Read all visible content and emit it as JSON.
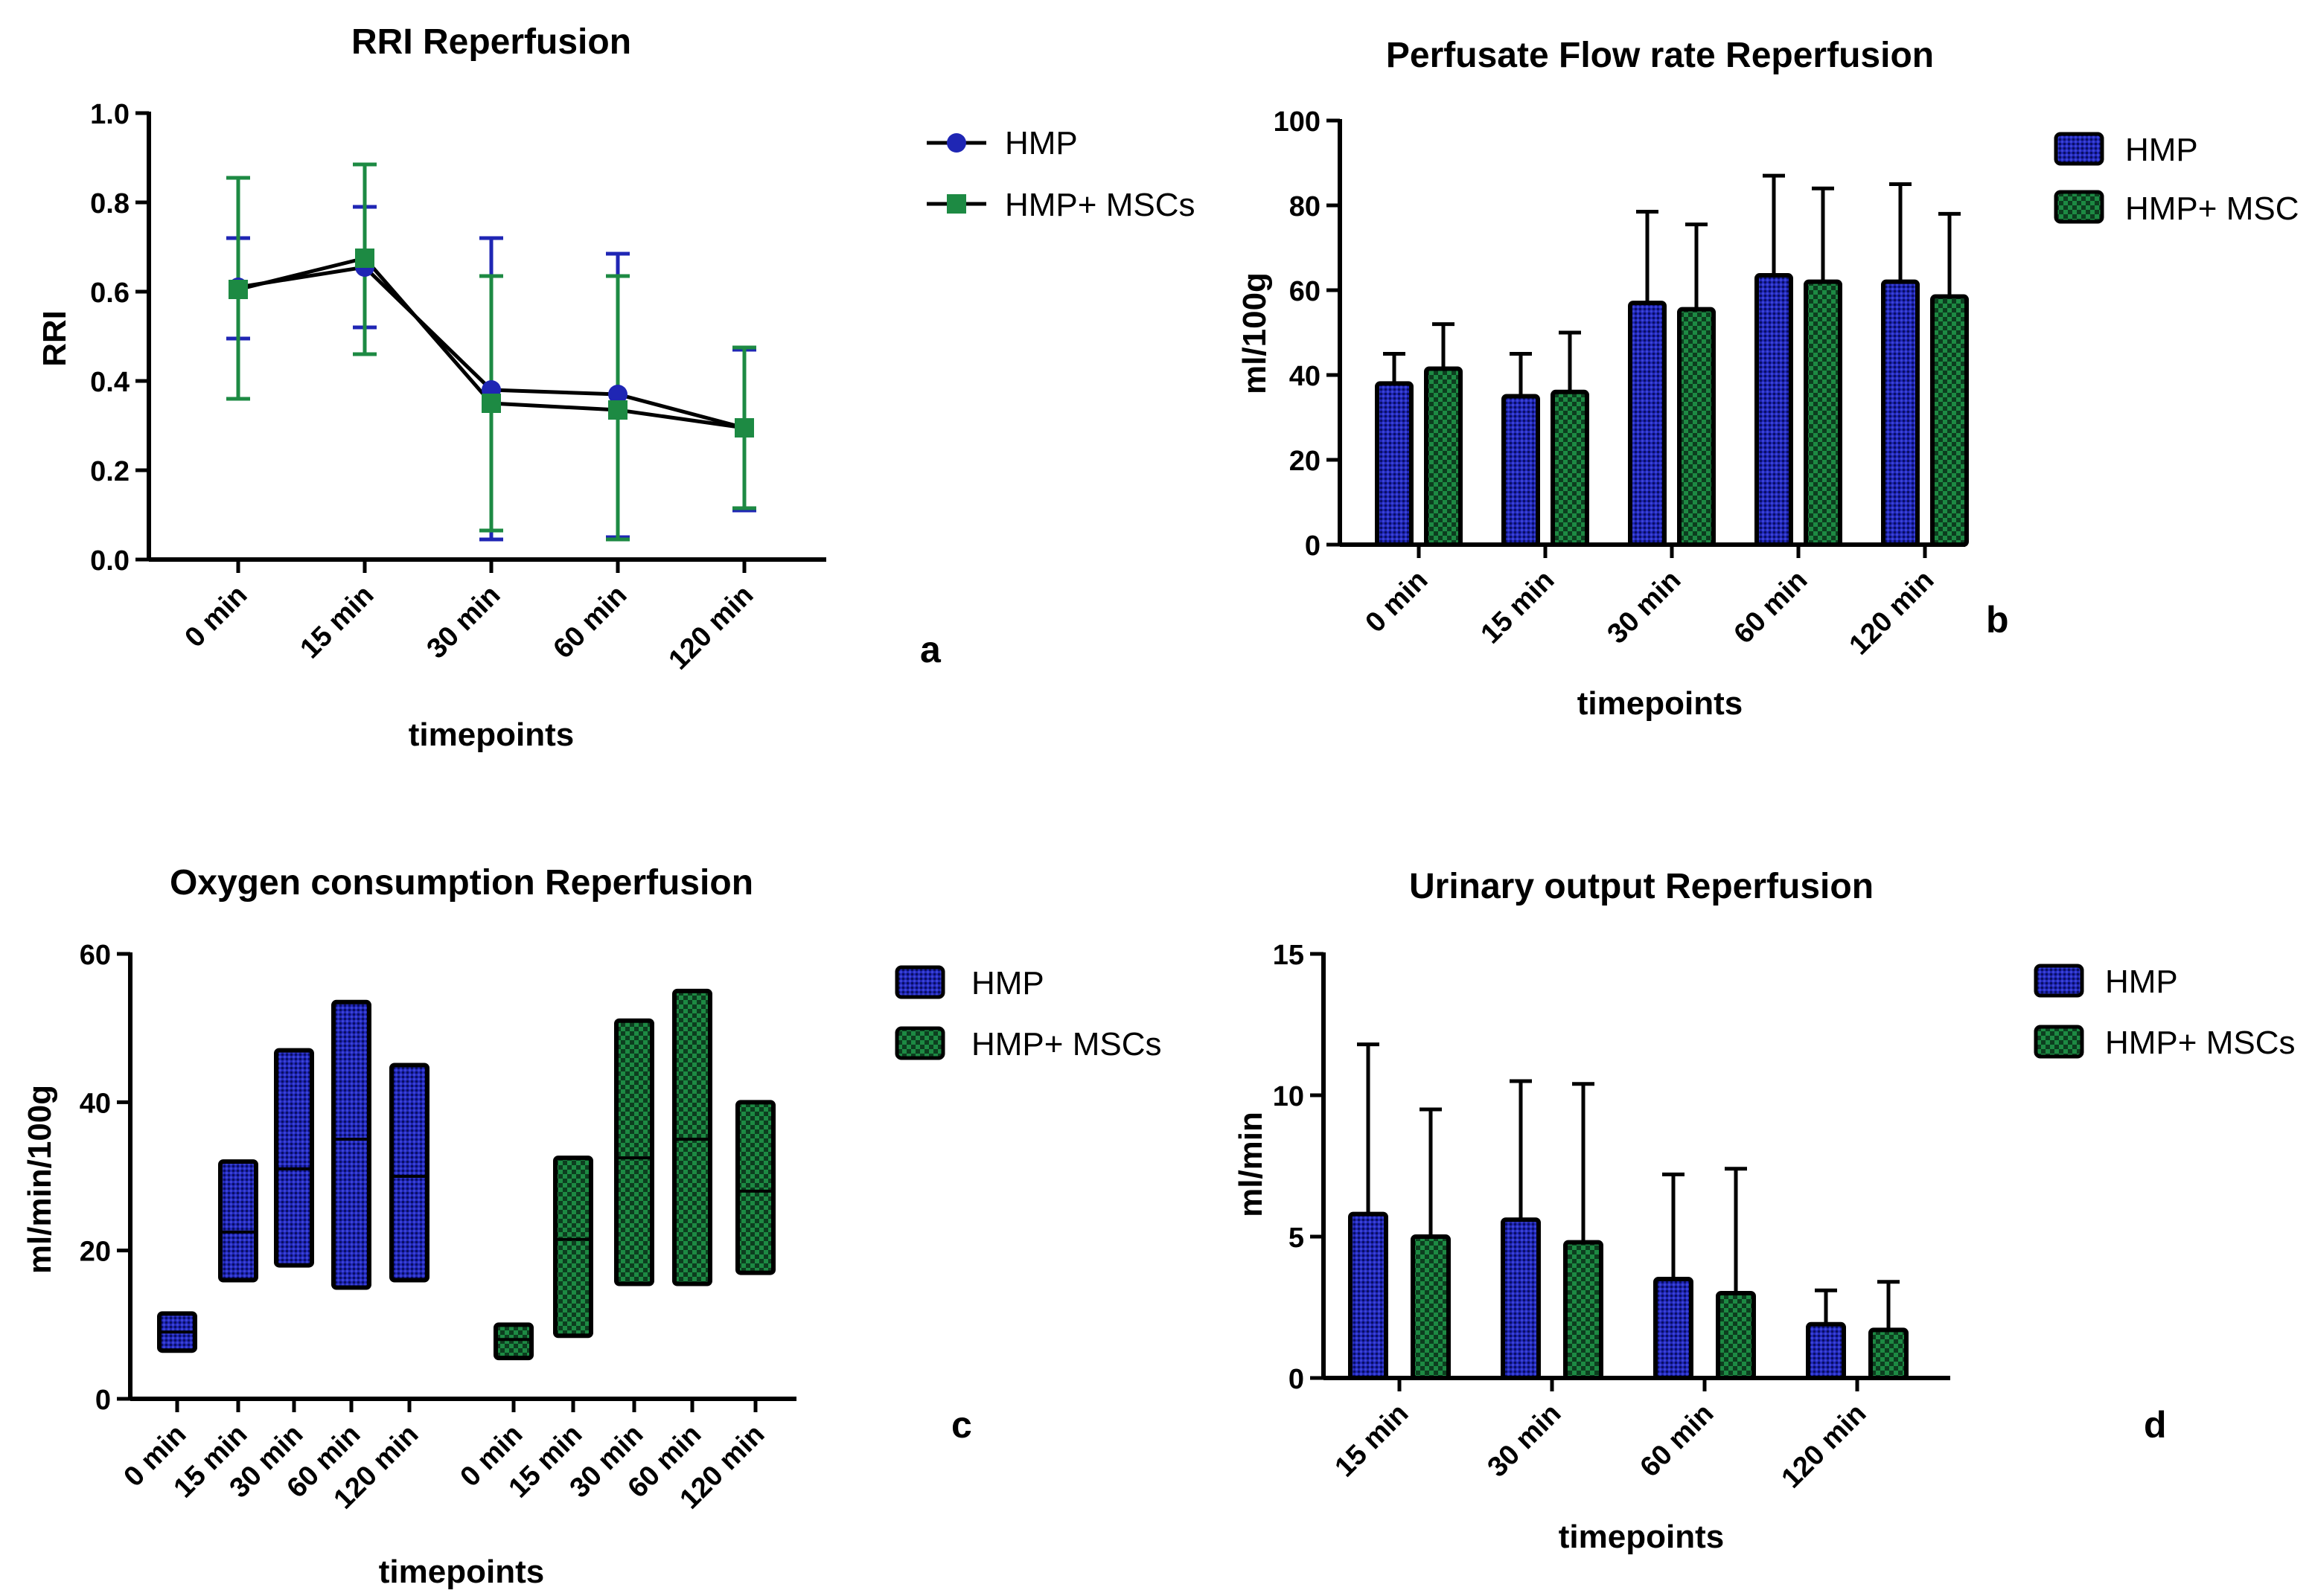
{
  "colors": {
    "hmp": "#1f26b4",
    "hmp_msc": "#1d8a43",
    "axis": "#000000"
  },
  "chart_data": [
    {
      "panel": "a",
      "type": "line",
      "title": "RRI Reperfusion",
      "xlabel": "timepoints",
      "ylabel": "RRI",
      "ylim": [
        0,
        1.0
      ],
      "yticks": [
        "0.0",
        "0.2",
        "0.4",
        "0.6",
        "0.8",
        "1.0"
      ],
      "categories": [
        "0 min",
        "15 min",
        "30 min",
        "60 min",
        "120 min"
      ],
      "legend": "right",
      "series": [
        {
          "name": "HMP",
          "marker": "circle",
          "values": [
            0.61,
            0.655,
            0.38,
            0.37,
            0.295
          ],
          "err_low": [
            0.495,
            0.52,
            0.045,
            0.05,
            0.11
          ],
          "err_high": [
            0.72,
            0.79,
            0.72,
            0.685,
            0.47
          ]
        },
        {
          "name": "HMP+ MSCs",
          "marker": "square",
          "values": [
            0.605,
            0.675,
            0.35,
            0.335,
            0.295
          ],
          "err_low": [
            0.36,
            0.46,
            0.065,
            0.045,
            0.115
          ],
          "err_high": [
            0.855,
            0.885,
            0.635,
            0.635,
            0.475
          ]
        }
      ]
    },
    {
      "panel": "b",
      "type": "bar",
      "title": "Perfusate Flow rate Reperfusion",
      "xlabel": "timepoints",
      "ylabel": "ml/100g",
      "ylim": [
        0,
        100
      ],
      "yticks": [
        "0",
        "20",
        "40",
        "60",
        "80",
        "100"
      ],
      "categories": [
        "0 min",
        "15 min",
        "30 min",
        "60 min",
        "120 min"
      ],
      "legend": "right",
      "series": [
        {
          "name": "HMP",
          "values": [
            38,
            35,
            57,
            63.5,
            62
          ],
          "err": [
            45,
            45,
            78.5,
            87,
            85
          ]
        },
        {
          "name": "HMP+ MSC",
          "values": [
            41.5,
            36,
            55.5,
            62,
            58.5
          ],
          "err": [
            52,
            50,
            75.5,
            84,
            78
          ]
        }
      ]
    },
    {
      "panel": "c",
      "type": "bar",
      "subtype": "floating-range",
      "title": "Oxygen consumption Reperfusion",
      "xlabel": "timepoints",
      "ylabel": "ml/min/100g",
      "ylim": [
        0,
        60
      ],
      "yticks": [
        "0",
        "20",
        "40",
        "60"
      ],
      "categories": [
        "0 min",
        "15 min",
        "30 min",
        "60 min",
        "120 min",
        "0 min",
        "15 min",
        "30 min",
        "60 min",
        "120 min"
      ],
      "legend": "right",
      "series": [
        {
          "name": "HMP",
          "min": [
            6.5,
            16,
            18,
            15,
            16
          ],
          "max": [
            11.5,
            32,
            47,
            53.5,
            45
          ],
          "median": [
            9,
            22.5,
            31,
            35,
            30
          ]
        },
        {
          "name": "HMP+ MSCs",
          "min": [
            5.5,
            8.5,
            15.5,
            15.5,
            17
          ],
          "max": [
            10,
            32.5,
            51,
            55,
            40
          ],
          "median": [
            8,
            21.5,
            32.5,
            35,
            28
          ]
        }
      ]
    },
    {
      "panel": "d",
      "type": "bar",
      "title": "Urinary output  Reperfusion",
      "xlabel": "timepoints",
      "ylabel": "ml/min",
      "ylim": [
        0,
        15
      ],
      "yticks": [
        "0",
        "5",
        "10",
        "15"
      ],
      "categories": [
        "15 min",
        "30 min",
        "60 min",
        "120 min"
      ],
      "legend": "right",
      "series": [
        {
          "name": "HMP",
          "values": [
            5.8,
            5.6,
            3.5,
            1.9
          ],
          "err": [
            11.8,
            10.5,
            7.2,
            3.1
          ]
        },
        {
          "name": "HMP+ MSCs",
          "values": [
            5.0,
            4.8,
            3.0,
            1.7
          ],
          "err": [
            9.5,
            10.4,
            7.4,
            3.4
          ]
        }
      ]
    }
  ]
}
